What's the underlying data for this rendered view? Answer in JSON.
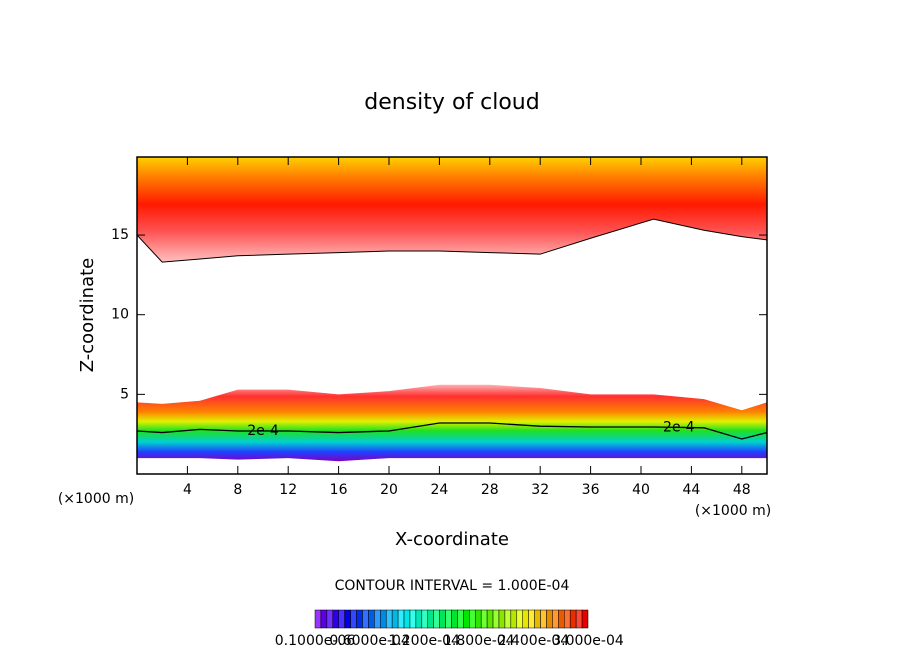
{
  "chart_data": {
    "type": "contour",
    "title": "density of cloud",
    "x_label": "X-coordinate",
    "y_label": "Z-coordinate",
    "x_unit": "(×1000 m)",
    "xlim": [
      0,
      50
    ],
    "xticks": [
      4,
      8,
      12,
      16,
      20,
      24,
      28,
      32,
      36,
      40,
      44,
      48
    ],
    "ylim": [
      0,
      19.9
    ],
    "yticks": [
      5,
      10,
      15
    ],
    "x": [
      0,
      2,
      5,
      8,
      12,
      16,
      20,
      24,
      28,
      32,
      36,
      41,
      45,
      48,
      50
    ],
    "regions": [
      {
        "lower": [
          15,
          13.3,
          13.5,
          13.7,
          13.8,
          13.9,
          14,
          14,
          13.9,
          13.8,
          14.8,
          16,
          15.3,
          14.9,
          14.7
        ],
        "upper": [
          19.9,
          19.9,
          19.9,
          19.9,
          19.9,
          19.9,
          19.9,
          19.9,
          19.9,
          19.9,
          19.9,
          19.9,
          19.9,
          19.9,
          19.9
        ]
      },
      {
        "lower": [
          1,
          1,
          1,
          0.9,
          1,
          0.8,
          1,
          1,
          1,
          1,
          1,
          1,
          1,
          1,
          1
        ],
        "upper": [
          4.5,
          4.4,
          4.6,
          5.3,
          5.3,
          5,
          5.2,
          5.6,
          5.6,
          5.4,
          5,
          5,
          4.7,
          4,
          4.5
        ]
      }
    ],
    "contour": {
      "label": "2e-4",
      "values": [
        2.7,
        2.6,
        2.8,
        2.7,
        2.7,
        2.6,
        2.7,
        3.2,
        3.2,
        3,
        2.95,
        2.95,
        2.9,
        2.2,
        2.6
      ]
    },
    "contour_interval": "CONTOUR INTERVAL = 1.000E-04",
    "colorbar_labels": [
      "0.1000e-06",
      "0.6000e-04",
      "1.200e-04",
      "1.800e-04",
      "2.400e-04",
      "3.000e-04"
    ]
  }
}
